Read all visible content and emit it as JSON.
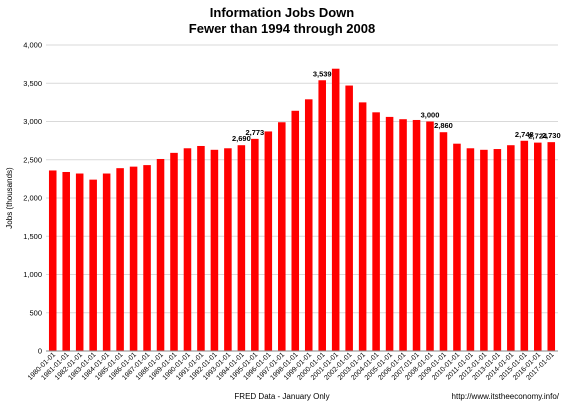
{
  "chart_data": {
    "type": "bar",
    "title_lines": [
      "Information Jobs Down",
      "Fewer than 1994 through 2008"
    ],
    "xlabel": "FRED Data - January Only",
    "ylabel": "Jobs (thousands)",
    "credit": "http://www.itstheeconomy.info/",
    "ylim": [
      0,
      4000
    ],
    "yticks": [
      0,
      500,
      1000,
      1500,
      2000,
      2500,
      3000,
      3500,
      4000
    ],
    "ytick_labels": [
      "0",
      "500",
      "1,000",
      "1,500",
      "2,000",
      "2,500",
      "3,000",
      "3,500",
      "4,000"
    ],
    "bar_color": "#ff0000",
    "grid": true,
    "categories": [
      "1980-01-01",
      "1981-01-01",
      "1982-01-01",
      "1983-01-01",
      "1984-01-01",
      "1985-01-01",
      "1986-01-01",
      "1987-01-01",
      "1988-01-01",
      "1989-01-01",
      "1990-01-01",
      "1991-01-01",
      "1992-01-01",
      "1993-01-01",
      "1994-01-01",
      "1995-01-01",
      "1996-01-01",
      "1997-01-01",
      "1998-01-01",
      "1999-01-01",
      "2000-01-01",
      "2001-01-01",
      "2002-01-01",
      "2003-01-01",
      "2004-01-01",
      "2005-01-01",
      "2006-01-01",
      "2007-01-01",
      "2008-01-01",
      "2009-01-01",
      "2010-01-01",
      "2011-01-01",
      "2012-01-01",
      "2013-01-01",
      "2014-01-01",
      "2015-01-01",
      "2016-01-01",
      "2017-01-01"
    ],
    "values": [
      2360,
      2340,
      2320,
      2240,
      2320,
      2390,
      2410,
      2430,
      2510,
      2590,
      2650,
      2680,
      2630,
      2650,
      2690,
      2773,
      2870,
      2990,
      3140,
      3290,
      3539,
      3690,
      3470,
      3250,
      3120,
      3060,
      3030,
      3020,
      3000,
      2860,
      2710,
      2650,
      2630,
      2640,
      2690,
      2748,
      2724,
      2730
    ],
    "data_labels": [
      {
        "index": 14,
        "text": "2,690"
      },
      {
        "index": 15,
        "text": "2,773"
      },
      {
        "index": 20,
        "text": "3,539"
      },
      {
        "index": 28,
        "text": "3,000"
      },
      {
        "index": 29,
        "text": "2,860"
      },
      {
        "index": 35,
        "text": "2,748"
      },
      {
        "index": 36,
        "text": "2,724"
      },
      {
        "index": 37,
        "text": "2,730"
      }
    ]
  }
}
